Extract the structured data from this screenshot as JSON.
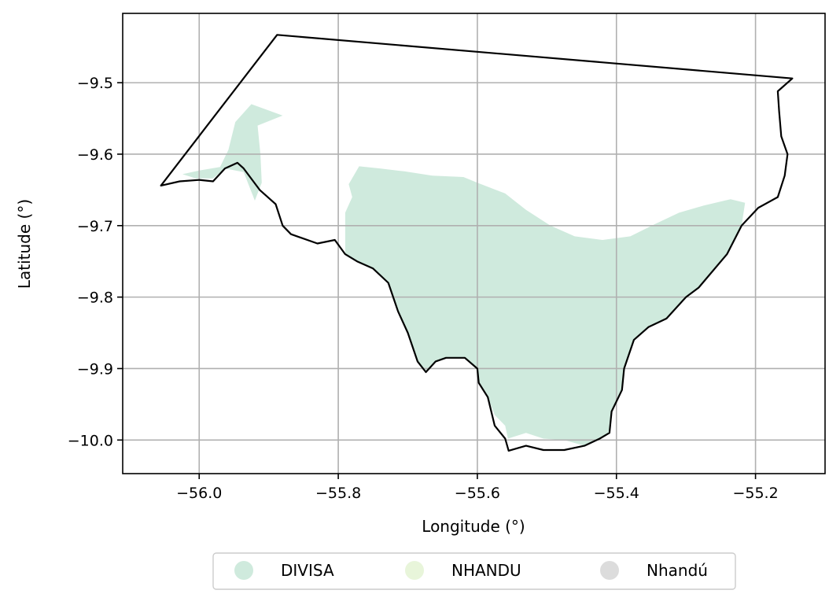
{
  "chart_data": {
    "type": "map",
    "xlabel": "Longitude (°)",
    "ylabel": "Latitude (°)",
    "xlim": [
      -56.11,
      -55.1
    ],
    "ylim": [
      -10.047,
      -9.403
    ],
    "grid": true,
    "x_ticks": [
      -56.0,
      -55.8,
      -55.6,
      -55.4,
      -55.2
    ],
    "y_ticks": [
      -9.5,
      -9.6,
      -9.7,
      -9.8,
      -9.9,
      -10.0
    ],
    "x_tick_labels": [
      "−56.0",
      "−55.8",
      "−55.6",
      "−55.4",
      "−55.2"
    ],
    "y_tick_labels": [
      "−9.5",
      "−9.6",
      "−9.7",
      "−9.8",
      "−9.9",
      "−10.0"
    ],
    "legend": {
      "placement": "bottom-center",
      "entries": [
        {
          "name": "DIVISA",
          "color": "#cfeadd"
        },
        {
          "name": "NHANDU",
          "color": "#e8f5da"
        },
        {
          "name": "Nhandú",
          "color": "#dcdcdc"
        }
      ]
    },
    "boundary_outline": [
      [
        -56.055,
        -9.644
      ],
      [
        -55.888,
        -9.433
      ],
      [
        -55.147,
        -9.494
      ],
      [
        -55.168,
        -9.512
      ],
      [
        -55.166,
        -9.54
      ],
      [
        -55.163,
        -9.575
      ],
      [
        -55.154,
        -9.6
      ],
      [
        -55.158,
        -9.63
      ],
      [
        -55.168,
        -9.66
      ],
      [
        -55.196,
        -9.675
      ],
      [
        -55.22,
        -9.7
      ],
      [
        -55.241,
        -9.74
      ],
      [
        -55.282,
        -9.787
      ],
      [
        -55.3,
        -9.8
      ],
      [
        -55.328,
        -9.83
      ],
      [
        -55.354,
        -9.842
      ],
      [
        -55.375,
        -9.86
      ],
      [
        -55.389,
        -9.9
      ],
      [
        -55.392,
        -9.93
      ],
      [
        -55.407,
        -9.96
      ],
      [
        -55.41,
        -9.99
      ],
      [
        -55.424,
        -9.998
      ],
      [
        -55.446,
        -10.008
      ],
      [
        -55.475,
        -10.014
      ],
      [
        -55.505,
        -10.014
      ],
      [
        -55.53,
        -10.008
      ],
      [
        -55.555,
        -10.015
      ],
      [
        -55.56,
        -9.998
      ],
      [
        -55.575,
        -9.98
      ],
      [
        -55.58,
        -9.96
      ],
      [
        -55.585,
        -9.94
      ],
      [
        -55.598,
        -9.92
      ],
      [
        -55.6,
        -9.9
      ],
      [
        -55.618,
        -9.885
      ],
      [
        -55.645,
        -9.885
      ],
      [
        -55.66,
        -9.89
      ],
      [
        -55.674,
        -9.905
      ],
      [
        -55.686,
        -9.89
      ],
      [
        -55.7,
        -9.85
      ],
      [
        -55.714,
        -9.82
      ],
      [
        -55.728,
        -9.78
      ],
      [
        -55.75,
        -9.76
      ],
      [
        -55.773,
        -9.75
      ],
      [
        -55.79,
        -9.74
      ],
      [
        -55.805,
        -9.72
      ],
      [
        -55.83,
        -9.725
      ],
      [
        -55.868,
        -9.712
      ],
      [
        -55.88,
        -9.7
      ],
      [
        -55.89,
        -9.67
      ],
      [
        -55.913,
        -9.65
      ],
      [
        -55.936,
        -9.62
      ],
      [
        -55.945,
        -9.612
      ],
      [
        -55.963,
        -9.62
      ],
      [
        -55.98,
        -9.638
      ],
      [
        -56.0,
        -9.636
      ],
      [
        -56.028,
        -9.638
      ],
      [
        -56.055,
        -9.644
      ]
    ],
    "area_fill": [
      [
        [
          -56.024,
          -9.628
        ],
        [
          -56.0,
          -9.623
        ],
        [
          -55.97,
          -9.618
        ],
        [
          -55.958,
          -9.594
        ],
        [
          -55.948,
          -9.555
        ],
        [
          -55.925,
          -9.53
        ],
        [
          -55.88,
          -9.546
        ],
        [
          -55.916,
          -9.56
        ],
        [
          -55.912,
          -9.6
        ],
        [
          -55.91,
          -9.64
        ],
        [
          -55.92,
          -9.665
        ],
        [
          -55.936,
          -9.625
        ],
        [
          -55.963,
          -9.62
        ],
        [
          -55.98,
          -9.634
        ],
        [
          -56.005,
          -9.634
        ]
      ],
      [
        [
          -55.785,
          -9.642
        ],
        [
          -55.77,
          -9.617
        ],
        [
          -55.74,
          -9.62
        ],
        [
          -55.705,
          -9.624
        ],
        [
          -55.665,
          -9.63
        ],
        [
          -55.62,
          -9.632
        ],
        [
          -55.6,
          -9.64
        ],
        [
          -55.56,
          -9.655
        ],
        [
          -55.53,
          -9.678
        ],
        [
          -55.495,
          -9.7
        ],
        [
          -55.46,
          -9.715
        ],
        [
          -55.42,
          -9.72
        ],
        [
          -55.38,
          -9.715
        ],
        [
          -55.345,
          -9.698
        ],
        [
          -55.31,
          -9.682
        ],
        [
          -55.275,
          -9.672
        ],
        [
          -55.236,
          -9.663
        ],
        [
          -55.215,
          -9.668
        ],
        [
          -55.22,
          -9.7
        ],
        [
          -55.241,
          -9.74
        ],
        [
          -55.282,
          -9.787
        ],
        [
          -55.3,
          -9.8
        ],
        [
          -55.328,
          -9.83
        ],
        [
          -55.354,
          -9.842
        ],
        [
          -55.375,
          -9.86
        ],
        [
          -55.389,
          -9.9
        ],
        [
          -55.392,
          -9.93
        ],
        [
          -55.407,
          -9.96
        ],
        [
          -55.41,
          -9.99
        ],
        [
          -55.424,
          -9.998
        ],
        [
          -55.446,
          -10.008
        ],
        [
          -55.475,
          -10.0
        ],
        [
          -55.505,
          -9.998
        ],
        [
          -55.53,
          -9.99
        ],
        [
          -55.556,
          -9.998
        ],
        [
          -55.56,
          -9.98
        ],
        [
          -55.575,
          -9.965
        ],
        [
          -55.585,
          -9.94
        ],
        [
          -55.598,
          -9.92
        ],
        [
          -55.6,
          -9.9
        ],
        [
          -55.618,
          -9.885
        ],
        [
          -55.645,
          -9.885
        ],
        [
          -55.66,
          -9.89
        ],
        [
          -55.674,
          -9.905
        ],
        [
          -55.686,
          -9.89
        ],
        [
          -55.7,
          -9.85
        ],
        [
          -55.714,
          -9.82
        ],
        [
          -55.728,
          -9.78
        ],
        [
          -55.75,
          -9.76
        ],
        [
          -55.773,
          -9.75
        ],
        [
          -55.79,
          -9.74
        ],
        [
          -55.79,
          -9.72
        ],
        [
          -55.79,
          -9.682
        ],
        [
          -55.78,
          -9.66
        ]
      ]
    ]
  }
}
